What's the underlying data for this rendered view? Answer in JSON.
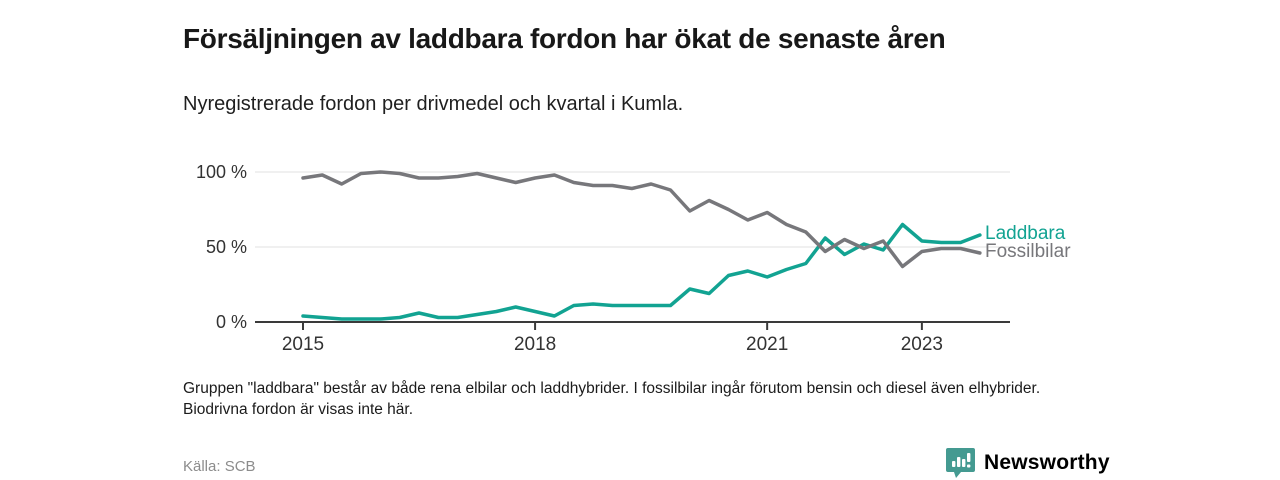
{
  "title": "Försäljningen av laddbara fordon har ökat de senaste åren",
  "subtitle": "Nyregistrerade fordon per drivmedel och kvartal i Kumla.",
  "footnote": "Gruppen \"laddbara\" består av både rena elbilar och laddhybrider. I fossilbilar ingår förutom bensin och diesel även elhybrider. Biodrivna fordon är visas inte här.",
  "source": "Källa: SCB",
  "brand": {
    "name": "Newsworthy",
    "logo_icon": "bar-chart-pin-icon",
    "color": "#449a91"
  },
  "colors": {
    "laddbara": "#12a392",
    "fossilbilar": "#77777b",
    "gridline": "#e2e2e2",
    "axis": "#3a3a3a",
    "tick_text": "#333333"
  },
  "chart_data": {
    "type": "line",
    "title": "Nyregistrerade fordon per drivmedel och kvartal i Kumla",
    "x_unit": "quarter",
    "x_start_year": 2015,
    "x_end_year_quarter": "2023 Q4",
    "ylim": [
      0,
      100
    ],
    "grid": "horizontal",
    "legend_position": "end-of-line",
    "y_ticks": [
      {
        "value": 100,
        "label": "100 %"
      },
      {
        "value": 50,
        "label": "50 %"
      },
      {
        "value": 0,
        "label": "0 %"
      }
    ],
    "x_ticks": [
      {
        "year": 2015,
        "label": "2015"
      },
      {
        "year": 2018,
        "label": "2018"
      },
      {
        "year": 2021,
        "label": "2021"
      },
      {
        "year": 2023,
        "label": "2023"
      }
    ],
    "series": [
      {
        "name": "Laddbara",
        "color": "#12a392",
        "values": [
          4,
          3,
          2,
          2,
          2,
          3,
          6,
          3,
          3,
          5,
          7,
          10,
          7,
          4,
          11,
          12,
          11,
          11,
          11,
          11,
          22,
          19,
          31,
          34,
          30,
          35,
          39,
          56,
          45,
          52,
          48,
          65,
          54,
          53,
          53,
          58
        ]
      },
      {
        "name": "Fossilbilar",
        "color": "#77777b",
        "values": [
          96,
          98,
          92,
          99,
          100,
          99,
          96,
          96,
          97,
          99,
          96,
          93,
          96,
          98,
          93,
          91,
          91,
          89,
          92,
          88,
          74,
          81,
          75,
          68,
          73,
          65,
          60,
          47,
          55,
          49,
          54,
          37,
          47,
          49,
          49,
          46
        ]
      }
    ]
  }
}
